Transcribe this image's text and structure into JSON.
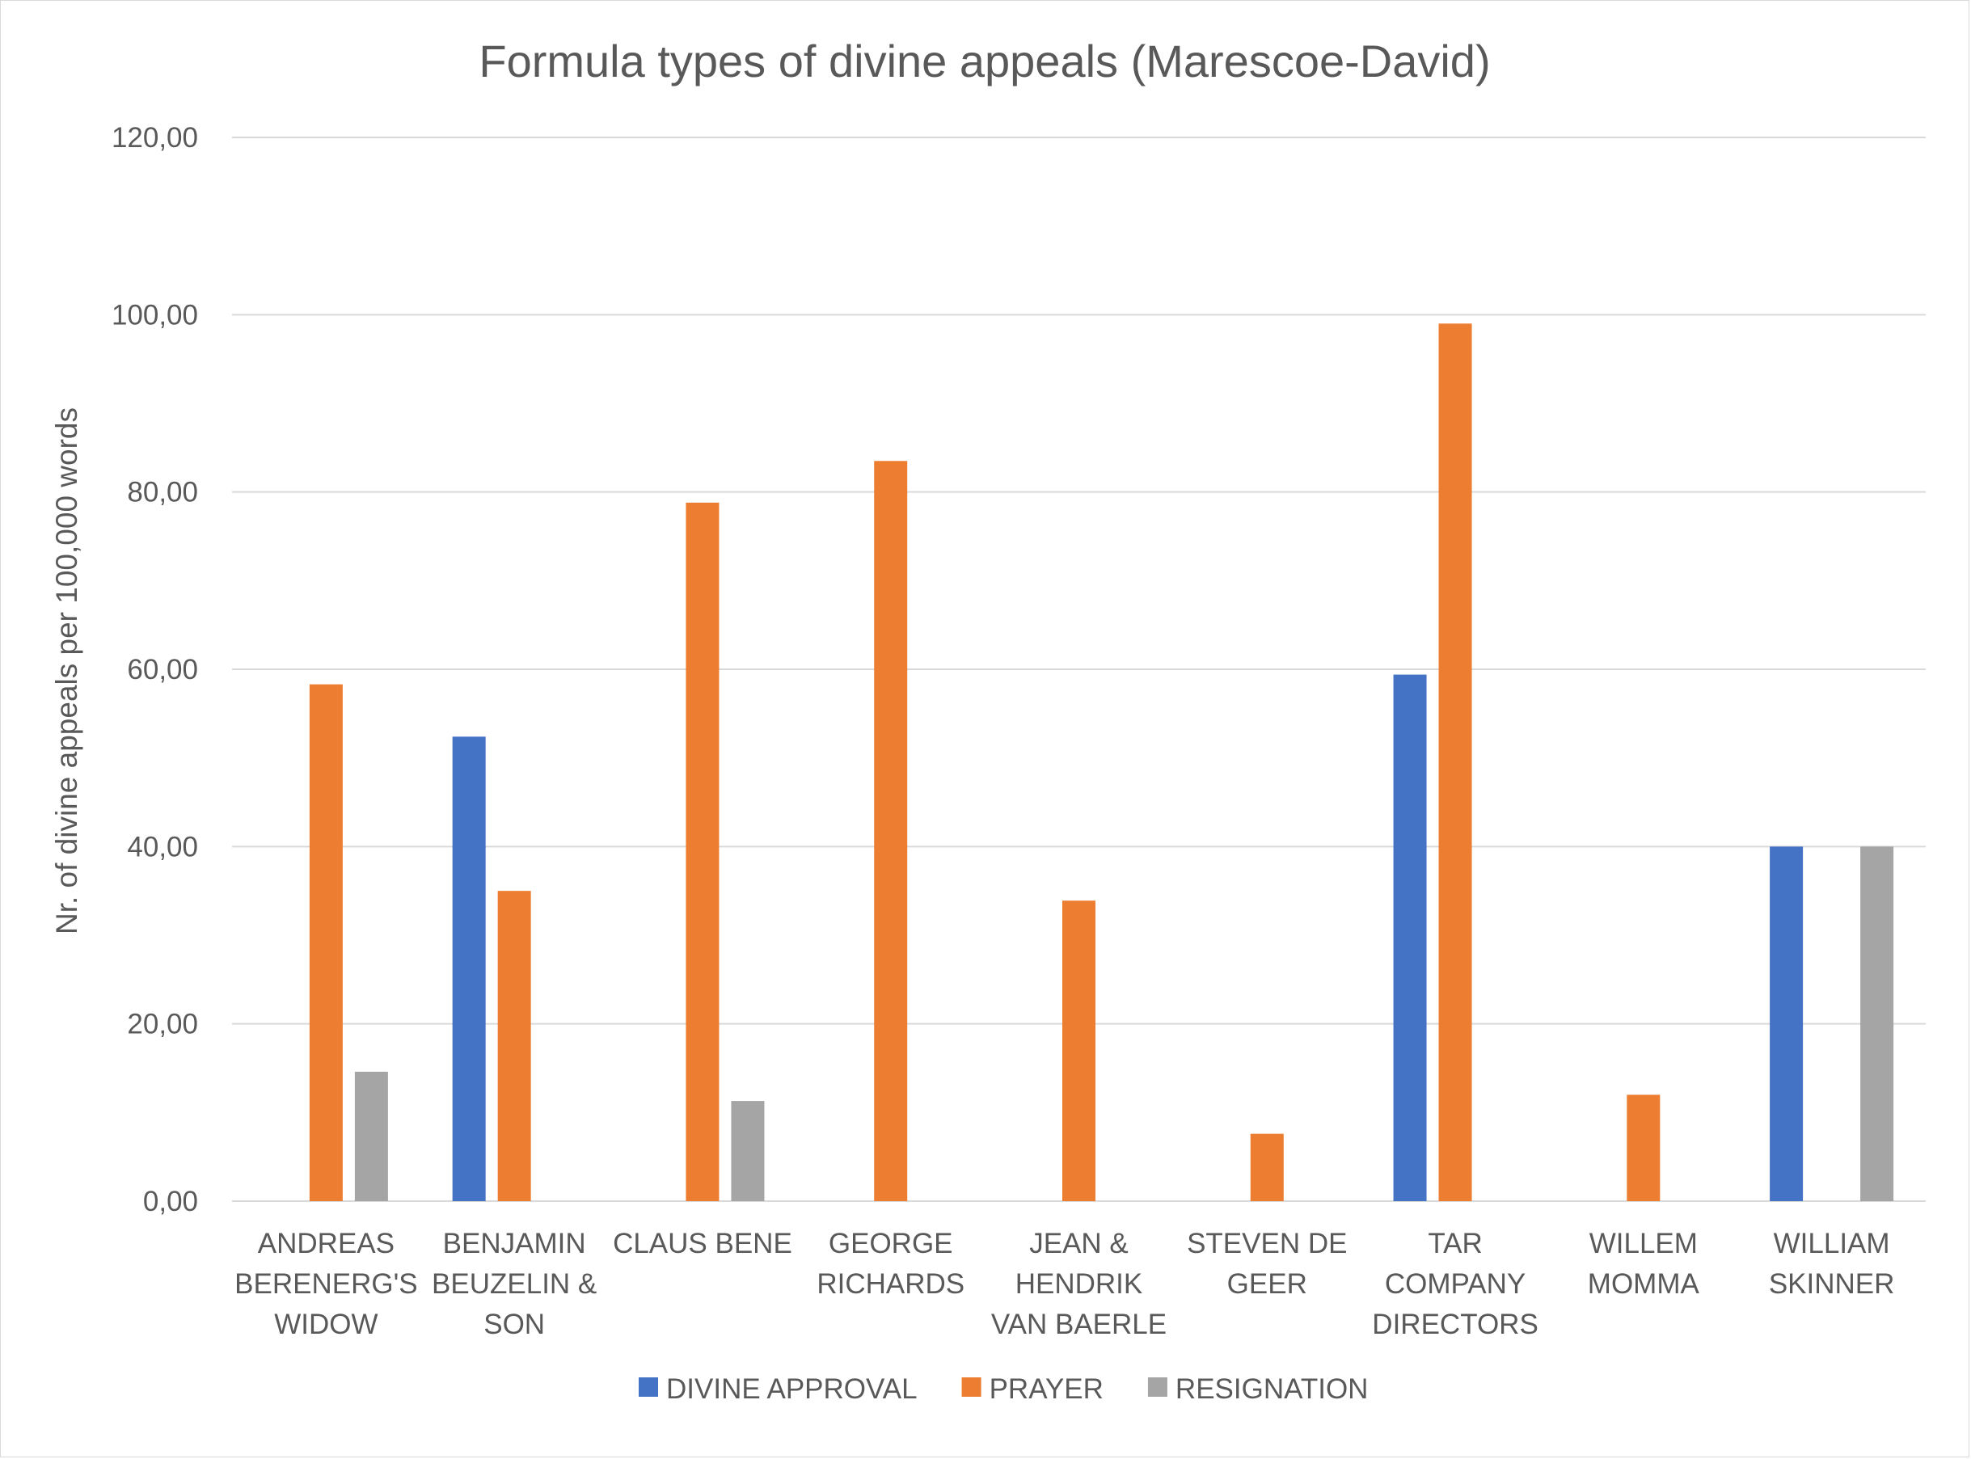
{
  "chart_data": {
    "type": "bar",
    "title": "Formula types of divine appeals (Marescoe-David)",
    "ylabel": "Nr. of divine appeals per 100,000 words",
    "xlabel": "",
    "ylim": [
      0,
      120
    ],
    "yticks": [
      "0,00",
      "20,00",
      "40,00",
      "60,00",
      "80,00",
      "100,00",
      "120,00"
    ],
    "ytick_values": [
      0,
      20,
      40,
      60,
      80,
      100,
      120
    ],
    "grid": true,
    "legend_position": "bottom",
    "categories": [
      [
        "ANDREAS",
        "BERENERG'S",
        "WIDOW"
      ],
      [
        "BENJAMIN",
        "BEUZELIN &",
        "SON"
      ],
      [
        "CLAUS BENE"
      ],
      [
        "GEORGE",
        "RICHARDS"
      ],
      [
        "JEAN &",
        "HENDRIK",
        "VAN BAERLE"
      ],
      [
        "STEVEN DE",
        "GEER"
      ],
      [
        "TAR",
        "COMPANY",
        "DIRECTORS"
      ],
      [
        "WILLEM",
        "MOMMA"
      ],
      [
        "WILLIAM",
        "SKINNER"
      ]
    ],
    "series": [
      {
        "name": "DIVINE APPROVAL",
        "color": "#4472c4",
        "values": [
          0,
          52.4,
          0,
          0,
          0,
          0,
          59.4,
          0,
          40.0
        ]
      },
      {
        "name": "PRAYER",
        "color": "#ed7d31",
        "values": [
          58.3,
          35.0,
          78.8,
          83.5,
          33.9,
          7.6,
          99.0,
          12.0,
          0
        ]
      },
      {
        "name": "RESIGNATION",
        "color": "#a5a5a5",
        "values": [
          14.6,
          0,
          11.3,
          0,
          0,
          0,
          0,
          0,
          40.0
        ]
      }
    ]
  }
}
